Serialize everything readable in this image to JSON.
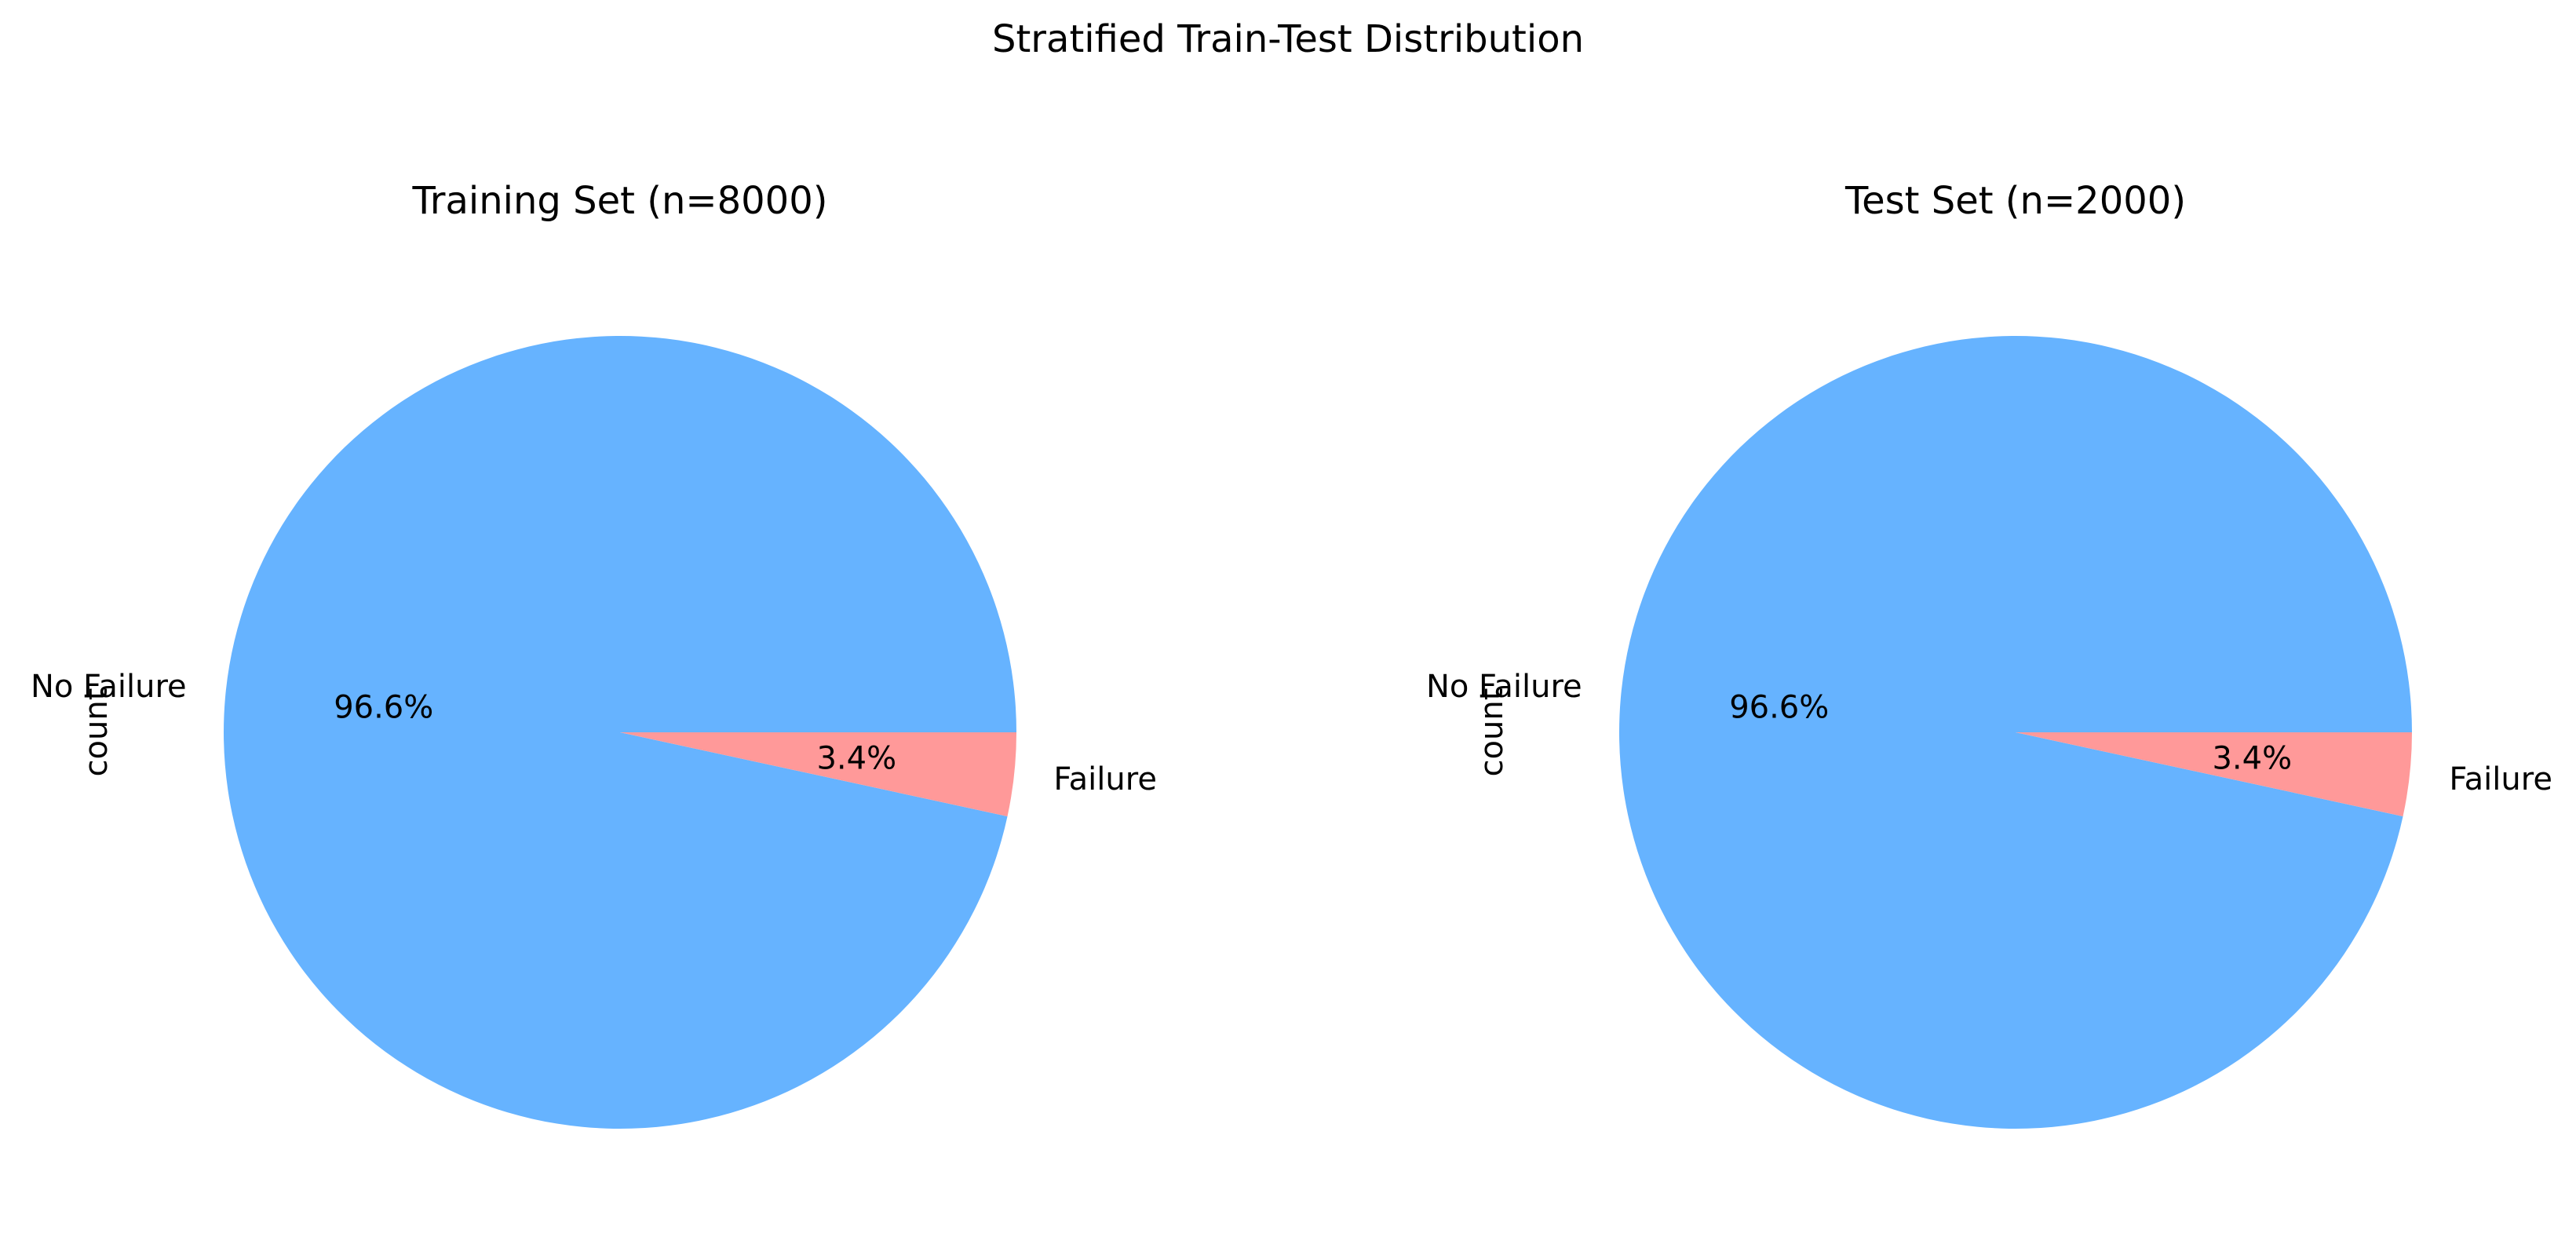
{
  "figure": {
    "title": "Stratified Train-Test Distribution"
  },
  "colors": {
    "no_failure": "#66b3ff",
    "failure": "#ff9999"
  },
  "chart_data": [
    {
      "type": "pie",
      "title": "Training Set (n=8000)",
      "ylabel": "count",
      "labels": [
        "No Failure",
        "Failure"
      ],
      "values": [
        96.6,
        3.4
      ],
      "percent_labels": [
        "96.6%",
        "3.4%"
      ],
      "colors": [
        "#66b3ff",
        "#ff9999"
      ]
    },
    {
      "type": "pie",
      "title": "Test Set (n=2000)",
      "ylabel": "count",
      "labels": [
        "No Failure",
        "Failure"
      ],
      "values": [
        96.6,
        3.4
      ],
      "percent_labels": [
        "96.6%",
        "3.4%"
      ],
      "colors": [
        "#66b3ff",
        "#ff9999"
      ]
    }
  ]
}
